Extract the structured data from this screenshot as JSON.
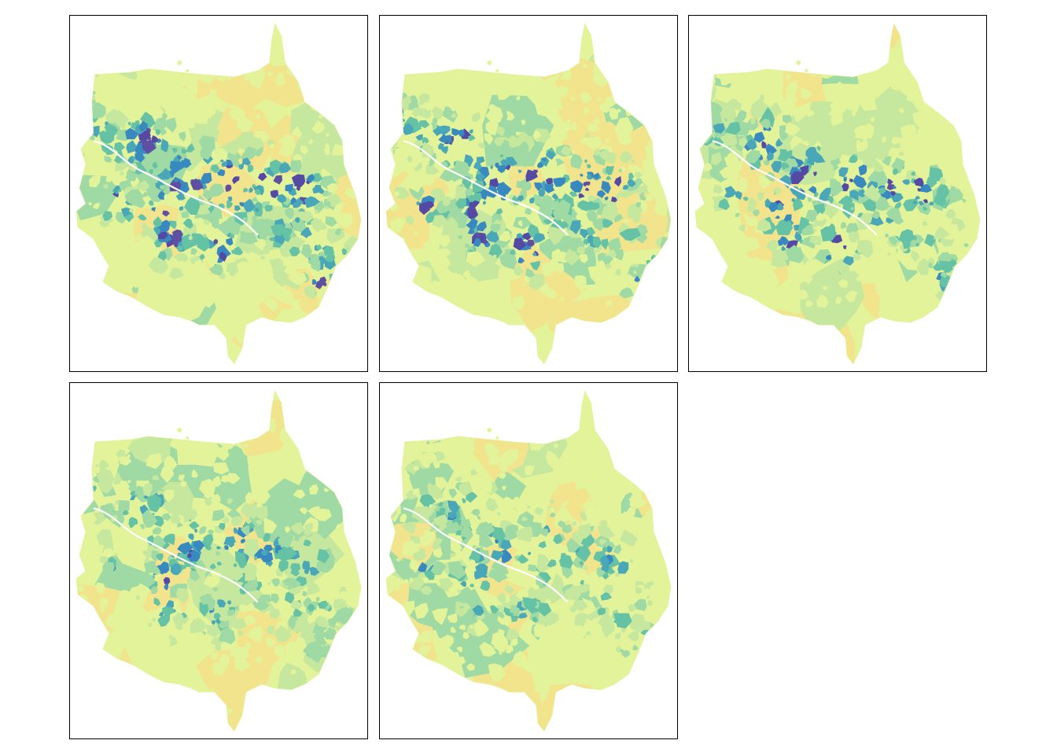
{
  "map": {
    "layout": "facet-grid",
    "panel_count": 5,
    "palette": [
      "#f2e48c",
      "#e2f39a",
      "#c6e79e",
      "#9fd9a3",
      "#66c2a5",
      "#4aa7b7",
      "#3789c0",
      "#5549a6",
      "#5e4fa2"
    ],
    "background": "#ffffff",
    "frame_color": "#000000",
    "river_color": "#ffffff",
    "panels": [
      {
        "panel": 1,
        "intensity": 1.0,
        "seed": 3
      },
      {
        "panel": 2,
        "intensity": 0.92,
        "seed": 11
      },
      {
        "panel": 3,
        "intensity": 0.85,
        "seed": 19
      },
      {
        "panel": 4,
        "intensity": 0.72,
        "seed": 27
      },
      {
        "panel": 5,
        "intensity": 0.62,
        "seed": 35
      }
    ]
  }
}
